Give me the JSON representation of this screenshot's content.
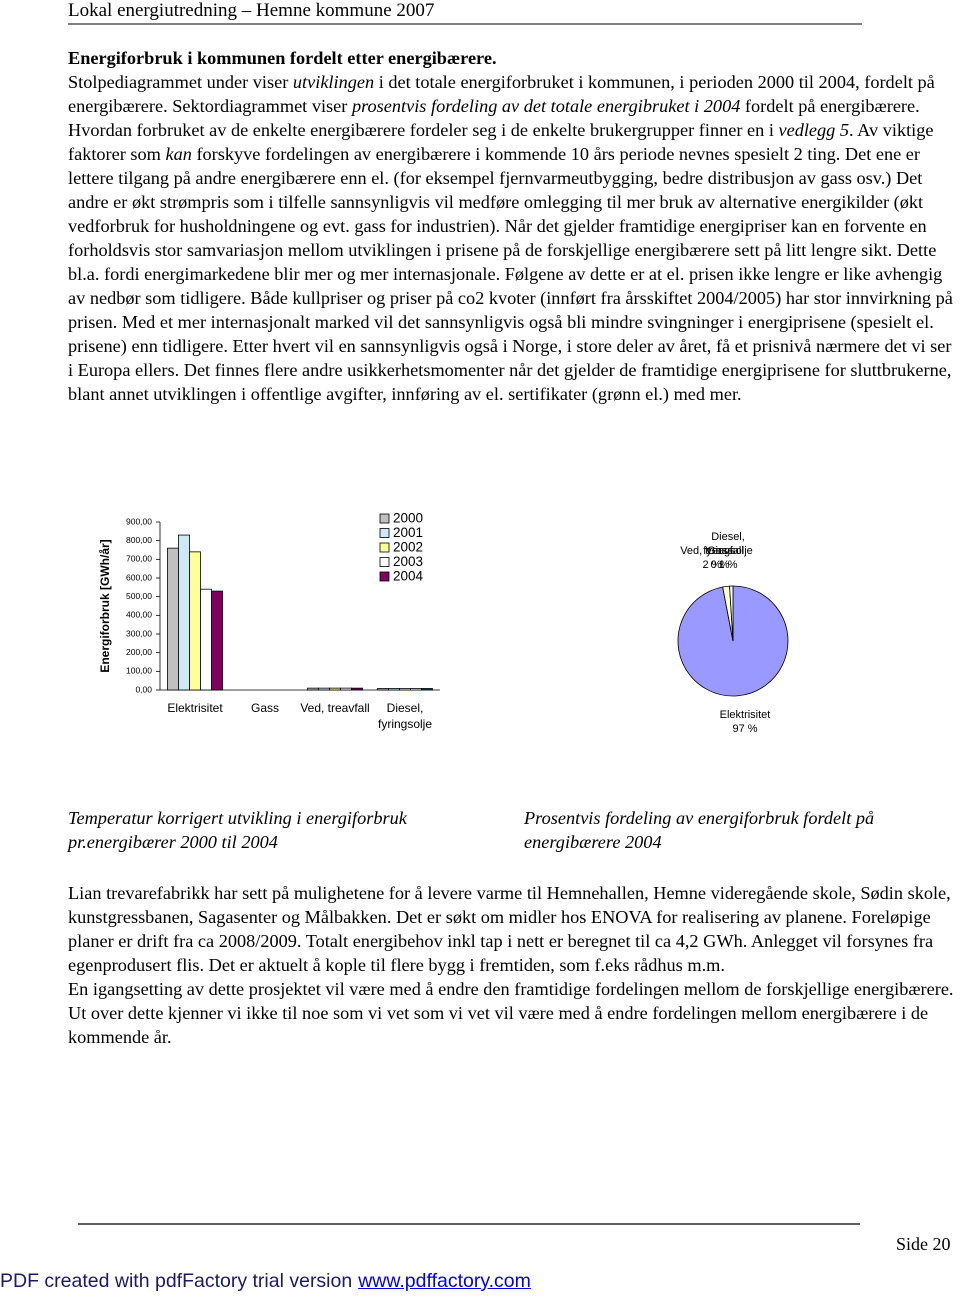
{
  "header": {
    "title": "Lokal energiutredning – Hemne kommune 2007"
  },
  "section_title": "Energiforbruk i kommunen fordelt etter energibærere.",
  "intro_paragraph": [
    {
      "text": "Stolpediagrammet under viser "
    },
    {
      "text": "utviklingen",
      "em": true
    },
    {
      "text": " i det totale energiforbruket i kommunen, i perioden 2000 til 2004, fordelt på energibærere. Sektordiagrammet viser "
    },
    {
      "text": "prosentvis fordeling av det totale energibruket i 2004",
      "em": true
    },
    {
      "text": " fordelt på energibærere. Hvordan forbruket av de enkelte energibærere fordeler seg i de enkelte brukergrupper finner en i "
    },
    {
      "text": "vedlegg 5",
      "em": true
    },
    {
      "text": ". Av viktige faktorer som "
    },
    {
      "text": "kan",
      "em": true
    },
    {
      "text": " forskyve fordelingen av energibærere i kommende 10 års periode nevnes spesielt 2 ting. Det ene er lettere tilgang på andre energibærere enn el. (for eksempel fjernvarmeutbygging, bedre distribusjon av gass osv.) Det andre er økt strømpris som i tilfelle sannsynligvis vil medføre omlegging til mer bruk av alternative energikilder (økt vedforbruk for husholdningene og evt. gass for industrien). Når det gjelder framtidige energipriser kan en forvente en forholdsvis stor samvariasjon  mellom utviklingen i prisene på de forskjellige energibærere sett på litt lengre sikt. Dette bl.a. fordi energimarkedene blir mer og mer internasjonale. Følgene av dette er at el. prisen ikke lengre er like avhengig av nedbør som tidligere. Både kullpriser og priser på co2 kvoter (innført fra årsskiftet 2004/2005) har stor innvirkning på prisen. Med et mer internasjonalt marked vil det sannsynligvis også bli mindre svingninger i energiprisene (spesielt el. prisene) enn tidligere. Etter hvert vil en sannsynligvis også i Norge, i store deler av året, få et prisnivå nærmere det vi ser i Europa ellers. Det finnes flere andre usikkerhetsmomenter når det gjelder de framtidige energiprisene for sluttbrukerne, blant annet utviklingen i offentlige avgifter, innføring av el. sertifikater (grønn el.) med mer."
    }
  ],
  "chart_data": [
    {
      "type": "bar",
      "ylabel": "Energiforbruk [GWh/år]",
      "caption": "Temperatur korrigert utvikling i energiforbruk pr.energibærer 2000 til 2004",
      "categories": [
        "Elektrisitet",
        "Gass",
        "Ved, treavfall",
        "Diesel, fyringsolje"
      ],
      "series": [
        {
          "name": "2000",
          "color": "#c0c0c0",
          "values": [
            760,
            0,
            10,
            8
          ]
        },
        {
          "name": "2001",
          "color": "#cfe8f8",
          "values": [
            830,
            0,
            10,
            8
          ]
        },
        {
          "name": "2002",
          "color": "#ffff99",
          "values": [
            740,
            0,
            10,
            8
          ]
        },
        {
          "name": "2003",
          "color": "#ffffff",
          "values": [
            540,
            0,
            10,
            8
          ]
        },
        {
          "name": "2004",
          "color": "#800060",
          "values": [
            530,
            0,
            10,
            8
          ]
        }
      ],
      "ylim": [
        0,
        900
      ],
      "yticks": [
        {
          "value": 0,
          "label": "0,00"
        },
        {
          "value": 100,
          "label": "100,00"
        },
        {
          "value": 200,
          "label": "200,00"
        },
        {
          "value": 300,
          "label": "300,00"
        },
        {
          "value": 400,
          "label": "400,00"
        },
        {
          "value": 500,
          "label": "500,00"
        },
        {
          "value": 600,
          "label": "600,00"
        },
        {
          "value": 700,
          "label": "700,00"
        },
        {
          "value": 800,
          "label": "800,00"
        },
        {
          "value": 900,
          "label": "900,00"
        }
      ],
      "grid": false,
      "legend": "top-right"
    },
    {
      "type": "pie",
      "caption": "Prosentvis fordeling av energiforbruk fordelt på energibærere 2004",
      "categories": [
        "Elektrisitet",
        "Gass",
        "Ved, treavfall",
        "Diesel, fyringsolje"
      ],
      "values": [
        97,
        0,
        2,
        1
      ],
      "value_labels": [
        "97 %",
        "0 %",
        "2 %",
        "1 %"
      ],
      "colors": [
        "#9999ff",
        "#993366",
        "#ffffcc",
        "#ffffff"
      ]
    }
  ],
  "body_paragraphs": [
    "Lian trevarefabrikk har sett på mulighetene for å levere varme til Hemnehallen, Hemne videregående skole, Sødin skole, kunstgressbanen, Sagasenter og Målbakken. Det er søkt om midler hos ENOVA for realisering av planene. Foreløpige planer er drift fra ca 2008/2009. Totalt energibehov inkl tap i nett er beregnet til ca 4,2 GWh. Anlegget vil forsynes fra egenprodusert flis.  Det er aktuelt å kople til flere bygg i fremtiden, som f.eks rådhus m.m.",
    "En igangsetting av dette prosjektet vil være med å endre den framtidige fordelingen mellom de forskjellige energibærere. Ut over dette kjenner vi ikke til noe som vi vet  som vi vet vil være med å endre fordelingen mellom energibærere i de kommende år."
  ],
  "footer": {
    "page": "Side 20",
    "notice": "PDF created with pdfFactory trial version",
    "link": "www.pdffactory.com"
  }
}
